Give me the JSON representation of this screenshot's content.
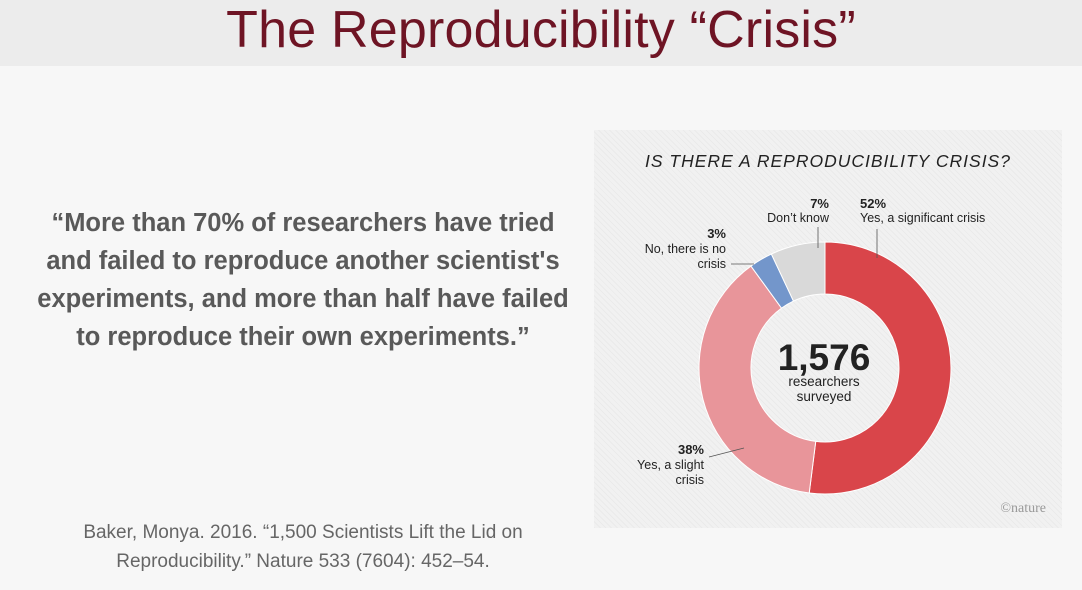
{
  "slide": {
    "title": "The Reproducibility “Crisis”",
    "quote": "“More than 70% of researchers have tried and failed to reproduce another scientist's experiments, and more than half have failed to reproduce their own experiments.”",
    "citation_line1": "Baker, Monya. 2016. “1,500 Scientists Lift the Lid on",
    "citation_line2": "Reproducibility.” Nature 533 (7604): 452–54."
  },
  "chart_data": {
    "type": "pie",
    "title": "IS THERE A REPRODUCIBILITY CRISIS?",
    "center_value": "1,576",
    "center_label_line1": "researchers",
    "center_label_line2": "surveyed",
    "watermark": "©nature",
    "slices": [
      {
        "pct_label": "52%",
        "label_line1": "Yes, a significant crisis",
        "label_line2": "",
        "value": 52,
        "color": "#d9454a"
      },
      {
        "pct_label": "38%",
        "label_line1": "Yes, a slight",
        "label_line2": "crisis",
        "value": 38,
        "color": "#e8959a"
      },
      {
        "pct_label": "3%",
        "label_line1": "No, there is no",
        "label_line2": "crisis",
        "value": 3,
        "color": "#7396cb"
      },
      {
        "pct_label": "7%",
        "label_line1": "Don’t know",
        "label_line2": "",
        "value": 7,
        "color": "#d9d9d9"
      }
    ]
  }
}
